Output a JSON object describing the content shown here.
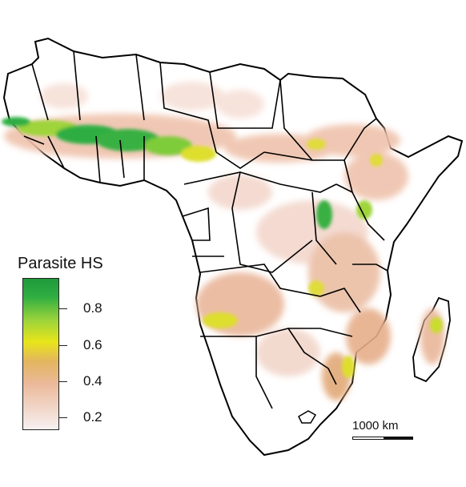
{
  "legend": {
    "title": "Parasite HS",
    "ticks": [
      {
        "label": "0.8",
        "value": 0.8
      },
      {
        "label": "0.6",
        "value": 0.6
      },
      {
        "label": "0.4",
        "value": 0.4
      },
      {
        "label": "0.2",
        "value": 0.2
      }
    ],
    "range": [
      0.13,
      0.97
    ],
    "colors": [
      "#f7f0f2",
      "#ebb99a",
      "#e2c24a",
      "#e8e51a",
      "#9fd43a",
      "#2aa53f",
      "#1f9a3c"
    ]
  },
  "scale_bar": {
    "label": "1000 km"
  },
  "map": {
    "continent_fill": "#ffffff",
    "border_color": "#000000",
    "hotspot_colors": {
      "low": "#f2d3c6",
      "mid": "#e8b88e",
      "high": "#dede2e",
      "very_high": "#2aa53f"
    }
  }
}
